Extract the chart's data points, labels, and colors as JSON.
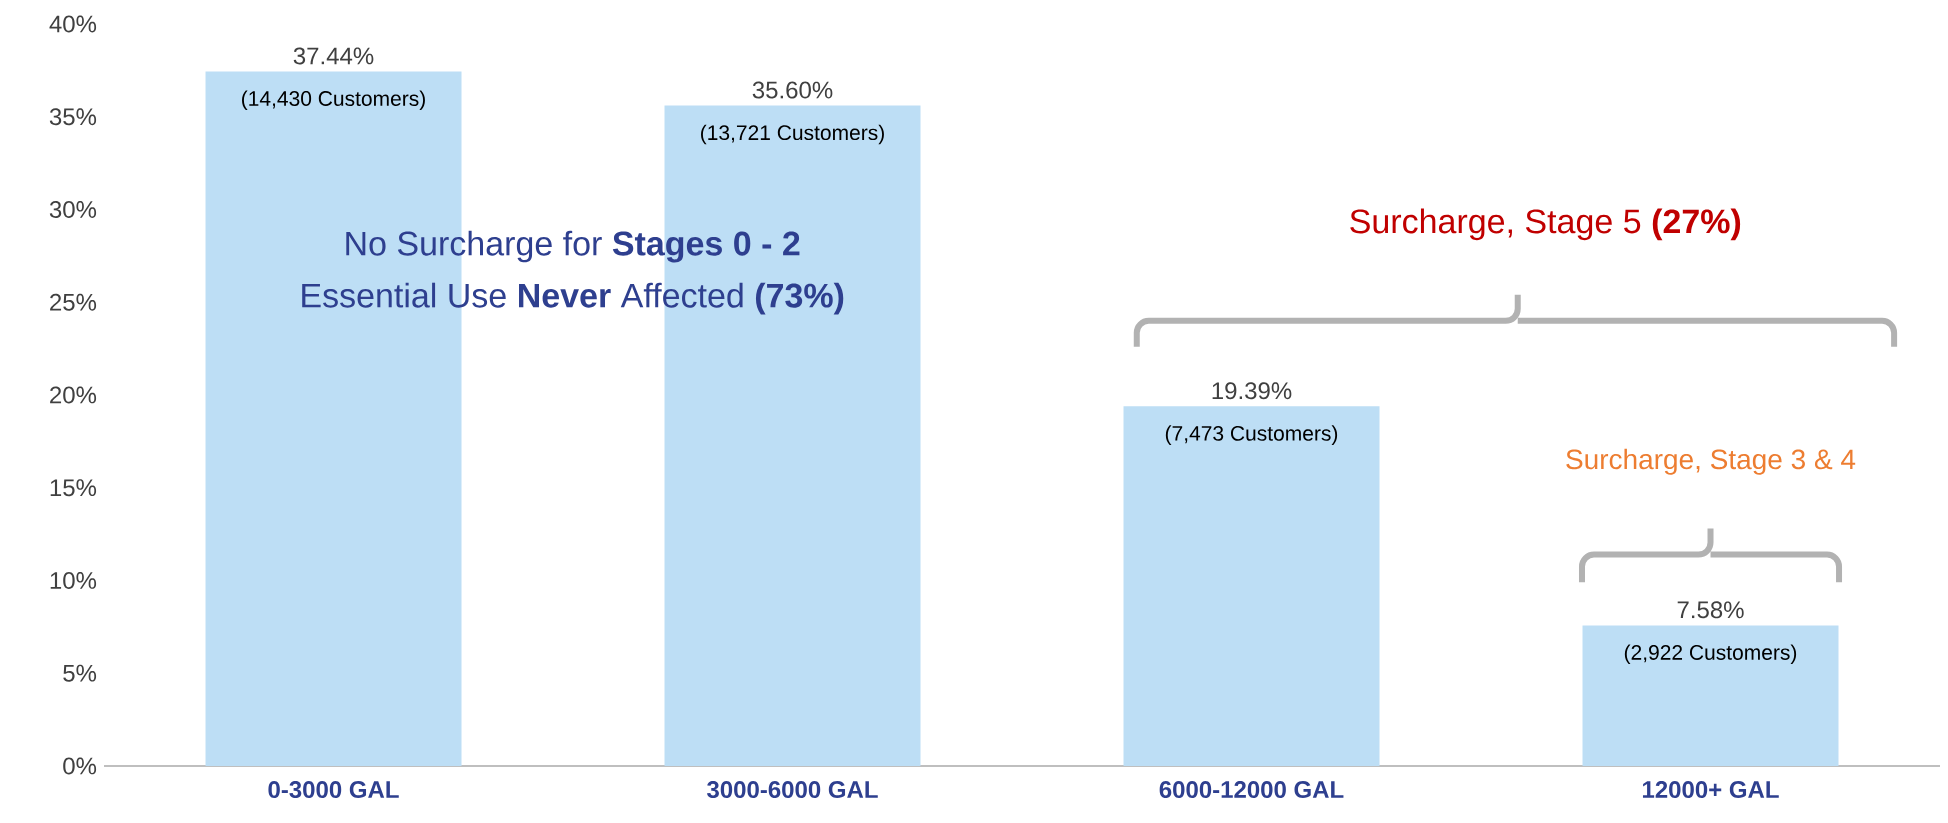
{
  "chart_data": {
    "type": "bar",
    "categories": [
      "0-3000 GAL",
      "3000-6000 GAL",
      "6000-12000 GAL",
      "12000+ GAL"
    ],
    "values": [
      37.44,
      35.6,
      19.39,
      7.58
    ],
    "value_labels": [
      "37.44%",
      "35.60%",
      "19.39%",
      "7.58%"
    ],
    "color": "#bddef5",
    "ylim": [
      0,
      40
    ],
    "yticks": [
      {
        "value": 0,
        "label": "0%"
      },
      {
        "value": 5,
        "label": "5%"
      },
      {
        "value": 10,
        "label": "10%"
      },
      {
        "value": 15,
        "label": "15%"
      },
      {
        "value": 20,
        "label": "20%"
      },
      {
        "value": 25,
        "label": "25%"
      },
      {
        "value": 30,
        "label": "30%"
      },
      {
        "value": 35,
        "label": "35%"
      },
      {
        "value": 40,
        "label": "40%"
      }
    ],
    "annotations": [
      {
        "text": "(14,430 Customers)",
        "x": "0-3000 GAL",
        "y": 37.44
      },
      {
        "text": "(13,721 Customers)",
        "x": "3000-6000 GAL",
        "y": 35.6
      },
      {
        "text": "(7,473 Customers)",
        "x": "6000-12000 GAL",
        "y": 19.39
      },
      {
        "text": "(2,922 Customers)",
        "x": "12000+ GAL",
        "y": 7.58
      },
      "No Surcharge for **Stages 0 - 2**",
      "Essential Use **Never** Affected **(73%)**",
      "Surcharge, Stage 5 **(27%)**",
      "Surcharge, Stage 3 & 4"
    ]
  }
}
